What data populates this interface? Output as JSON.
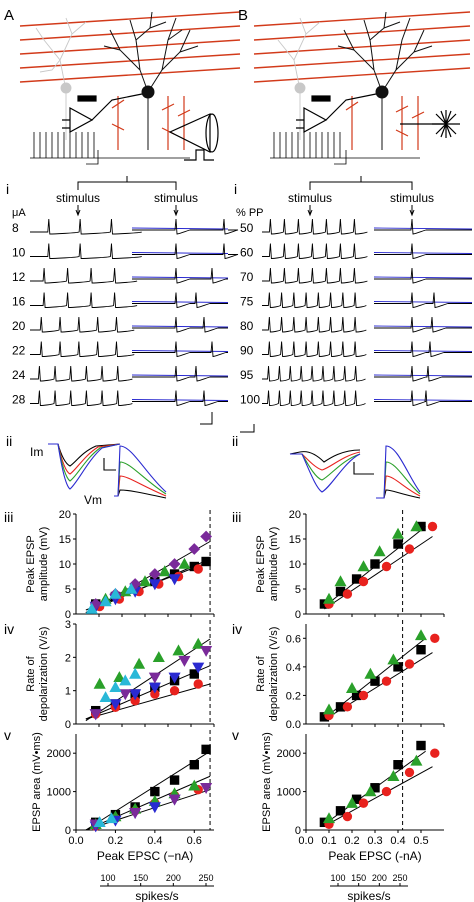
{
  "panels": {
    "A": "A",
    "B": "B",
    "Ai": "i",
    "Bi": "i",
    "Aii": "ii",
    "Bii": "ii",
    "Aiii": "iii",
    "Aiv": "iv",
    "Av": "v",
    "Biii": "iii",
    "Biv": "iv",
    "Bv": "v"
  },
  "traces": {
    "stimulus_label": "stimulus",
    "left_unit": "μA",
    "left_levels": [
      "8",
      "10",
      "12",
      "16",
      "20",
      "22",
      "24",
      "28"
    ],
    "right_unit": "% PP",
    "right_levels": [
      "50",
      "60",
      "70",
      "75",
      "80",
      "90",
      "95",
      "100"
    ],
    "Im": "Im",
    "Vm": "Vm"
  },
  "colors": {
    "dendrite_red": "#d23a1a",
    "neuron_black": "#111111",
    "black": "#000000",
    "red": "#e8221e",
    "green": "#2aa02a",
    "blue": "#2a2ad0",
    "purple": "#7a2a9a",
    "cyan": "#29b8d8"
  },
  "chart_data": [
    {
      "type": "scatter",
      "panel": "Aiii",
      "ylabel": "Peak EPSP amplitude (mV)",
      "xlim": [
        0,
        0.7
      ],
      "ylim": [
        0,
        20
      ],
      "yticks": [
        "0",
        "5",
        "10",
        "15",
        "20"
      ],
      "show_xticks": false,
      "vline": 0.68,
      "series": [
        {
          "marker": "square",
          "color": "black",
          "x": [
            0.1,
            0.2,
            0.3,
            0.4,
            0.5,
            0.6,
            0.66
          ],
          "y": [
            2,
            3.5,
            5,
            6.5,
            8,
            9.5,
            10.5
          ]
        },
        {
          "marker": "circle",
          "color": "red",
          "x": [
            0.12,
            0.22,
            0.32,
            0.42,
            0.52,
            0.62
          ],
          "y": [
            1.5,
            3,
            4.5,
            6,
            7.5,
            9
          ]
        },
        {
          "marker": "triangle",
          "color": "green",
          "x": [
            0.15,
            0.25,
            0.35,
            0.45,
            0.55
          ],
          "y": [
            3,
            4.5,
            6.5,
            8.5,
            10
          ]
        },
        {
          "marker": "tri-down",
          "color": "blue",
          "x": [
            0.1,
            0.2,
            0.3,
            0.4,
            0.5
          ],
          "y": [
            1.5,
            3,
            4.5,
            6,
            7
          ]
        },
        {
          "marker": "diamond",
          "color": "purple",
          "x": [
            0.1,
            0.2,
            0.3,
            0.4,
            0.5,
            0.6,
            0.66
          ],
          "y": [
            2,
            4,
            6,
            8,
            10,
            13,
            15.5
          ]
        },
        {
          "marker": "triangle",
          "color": "cyan",
          "x": [
            0.08,
            0.15,
            0.2,
            0.28
          ],
          "y": [
            1,
            2.5,
            4,
            5
          ]
        }
      ],
      "fits": [
        {
          "x": [
            0.05,
            0.68
          ],
          "y": [
            0.3,
            11
          ]
        },
        {
          "x": [
            0.05,
            0.68
          ],
          "y": [
            0.8,
            10.5
          ]
        },
        {
          "x": [
            0.05,
            0.68
          ],
          "y": [
            0.2,
            14.5
          ]
        }
      ]
    },
    {
      "type": "scatter",
      "panel": "Aiv",
      "ylabel": "Rate of depolarization (V/s)",
      "xlim": [
        0,
        0.7
      ],
      "ylim": [
        0,
        3
      ],
      "yticks": [
        "0",
        "1",
        "2",
        "3"
      ],
      "show_xticks": false,
      "vline": 0.68,
      "series": [
        {
          "marker": "square",
          "color": "black",
          "x": [
            0.1,
            0.2,
            0.3,
            0.4,
            0.5,
            0.6
          ],
          "y": [
            0.4,
            0.6,
            0.9,
            1.1,
            1.3,
            1.5
          ]
        },
        {
          "marker": "circle",
          "color": "red",
          "x": [
            0.1,
            0.2,
            0.3,
            0.4,
            0.5,
            0.62
          ],
          "y": [
            0.3,
            0.5,
            0.7,
            0.9,
            1.0,
            1.2
          ]
        },
        {
          "marker": "triangle",
          "color": "green",
          "x": [
            0.12,
            0.22,
            0.32,
            0.42,
            0.52,
            0.62
          ],
          "y": [
            1.2,
            1.4,
            1.8,
            2.0,
            2.2,
            2.4
          ]
        },
        {
          "marker": "tri-down",
          "color": "blue",
          "x": [
            0.1,
            0.2,
            0.3,
            0.4,
            0.5,
            0.62
          ],
          "y": [
            0.3,
            0.6,
            0.9,
            1.1,
            1.4,
            1.7
          ]
        },
        {
          "marker": "tri-down",
          "color": "purple",
          "x": [
            0.1,
            0.25,
            0.4,
            0.55,
            0.66
          ],
          "y": [
            0.3,
            0.9,
            1.4,
            1.9,
            2.2
          ]
        },
        {
          "marker": "triangle",
          "color": "cyan",
          "x": [
            0.15,
            0.2,
            0.25,
            0.3
          ],
          "y": [
            0.8,
            1.1,
            1.3,
            1.5
          ]
        }
      ],
      "fits": [
        {
          "x": [
            0.05,
            0.68
          ],
          "y": [
            0.1,
            2.55
          ]
        },
        {
          "x": [
            0.05,
            0.68
          ],
          "y": [
            0.15,
            1.75
          ]
        },
        {
          "x": [
            0.05,
            0.68
          ],
          "y": [
            0.15,
            1.2
          ]
        }
      ]
    },
    {
      "type": "scatter",
      "panel": "Av",
      "ylabel": "EPSP area (mV•ms)",
      "xlabel": "Peak EPSC (−nA)",
      "xlim": [
        0,
        0.7
      ],
      "ylim": [
        0,
        2500
      ],
      "yticks": [
        "0",
        "1000",
        "2000"
      ],
      "ytick_values": [
        0,
        1000,
        2000
      ],
      "xticks": [
        "0.0",
        "0.2",
        "0.4",
        "0.6"
      ],
      "xtick_values": [
        0,
        0.2,
        0.4,
        0.6
      ],
      "vline": 0.68,
      "series": [
        {
          "marker": "square",
          "color": "black",
          "x": [
            0.1,
            0.2,
            0.3,
            0.4,
            0.5,
            0.6,
            0.66
          ],
          "y": [
            200,
            400,
            600,
            1000,
            1300,
            1700,
            2100
          ]
        },
        {
          "marker": "circle",
          "color": "red",
          "x": [
            0.1,
            0.2,
            0.3,
            0.4,
            0.5,
            0.62
          ],
          "y": [
            100,
            300,
            500,
            700,
            900,
            1050
          ]
        },
        {
          "marker": "triangle",
          "color": "green",
          "x": [
            0.1,
            0.2,
            0.3,
            0.4,
            0.5,
            0.6
          ],
          "y": [
            150,
            350,
            550,
            750,
            950,
            1150
          ]
        },
        {
          "marker": "tri-down",
          "color": "blue",
          "x": [
            0.1,
            0.2,
            0.3,
            0.4,
            0.5
          ],
          "y": [
            100,
            250,
            450,
            600,
            800
          ]
        },
        {
          "marker": "tri-down",
          "color": "purple",
          "x": [
            0.1,
            0.3,
            0.5,
            0.66
          ],
          "y": [
            150,
            450,
            800,
            1100
          ]
        },
        {
          "marker": "triangle",
          "color": "cyan",
          "x": [
            0.12,
            0.18
          ],
          "y": [
            200,
            300
          ]
        }
      ],
      "fits": [
        {
          "x": [
            0.05,
            0.68
          ],
          "y": [
            0,
            2050
          ]
        },
        {
          "x": [
            0.05,
            0.68
          ],
          "y": [
            0,
            1400
          ]
        },
        {
          "x": [
            0.05,
            0.68
          ],
          "y": [
            0,
            1050
          ]
        }
      ]
    },
    {
      "type": "scatter",
      "panel": "Biii",
      "ylabel": "Peak EPSP amplitude (mV)",
      "xlim": [
        0,
        0.6
      ],
      "ylim": [
        0,
        20
      ],
      "yticks": [
        "0",
        "5",
        "10",
        "15",
        "20"
      ],
      "show_xticks": false,
      "vline": 0.42,
      "series": [
        {
          "marker": "square",
          "color": "black",
          "x": [
            0.08,
            0.15,
            0.22,
            0.3,
            0.4,
            0.5
          ],
          "y": [
            2,
            4.5,
            7,
            10,
            14,
            17.5
          ]
        },
        {
          "marker": "circle",
          "color": "red",
          "x": [
            0.1,
            0.18,
            0.25,
            0.35,
            0.45,
            0.55
          ],
          "y": [
            2,
            4,
            6.5,
            9.5,
            13,
            17.5
          ]
        },
        {
          "marker": "triangle",
          "color": "green",
          "x": [
            0.1,
            0.15,
            0.25,
            0.32,
            0.4,
            0.48
          ],
          "y": [
            3,
            6.5,
            9.5,
            12.5,
            16,
            17.5
          ]
        }
      ],
      "fits": [
        {
          "x": [
            0.08,
            0.52
          ],
          "y": [
            1.5,
            17.5
          ]
        },
        {
          "x": [
            0.08,
            0.55
          ],
          "y": [
            1.0,
            15.5
          ]
        }
      ]
    },
    {
      "type": "scatter",
      "panel": "Biv",
      "ylabel": "Rate of depolarization (V/s)",
      "xlim": [
        0,
        0.6
      ],
      "ylim": [
        0,
        0.7
      ],
      "yticks": [
        "0.0",
        "0.2",
        "0.4",
        "0.6"
      ],
      "ytick_values": [
        0,
        0.2,
        0.4,
        0.6
      ],
      "show_xticks": false,
      "vline": 0.42,
      "series": [
        {
          "marker": "square",
          "color": "black",
          "x": [
            0.08,
            0.15,
            0.22,
            0.3,
            0.4,
            0.5
          ],
          "y": [
            0.05,
            0.12,
            0.2,
            0.3,
            0.4,
            0.52
          ]
        },
        {
          "marker": "circle",
          "color": "red",
          "x": [
            0.1,
            0.18,
            0.25,
            0.35,
            0.45,
            0.56
          ],
          "y": [
            0.06,
            0.12,
            0.2,
            0.3,
            0.42,
            0.6
          ]
        },
        {
          "marker": "triangle",
          "color": "green",
          "x": [
            0.1,
            0.2,
            0.28,
            0.38,
            0.5
          ],
          "y": [
            0.1,
            0.25,
            0.35,
            0.45,
            0.62
          ]
        }
      ],
      "fits": [
        {
          "x": [
            0.08,
            0.52
          ],
          "y": [
            0.04,
            0.6
          ]
        },
        {
          "x": [
            0.08,
            0.55
          ],
          "y": [
            0.03,
            0.5
          ]
        }
      ]
    },
    {
      "type": "scatter",
      "panel": "Bv",
      "ylabel": "EPSP area (mV•ms)",
      "xlabel": "Peak EPSC (-nA)",
      "xlim": [
        0,
        0.6
      ],
      "ylim": [
        0,
        2500
      ],
      "yticks": [
        "0",
        "1000",
        "2000"
      ],
      "ytick_values": [
        0,
        1000,
        2000
      ],
      "xticks": [
        "0.0",
        "0.1",
        "0.2",
        "0.3",
        "0.4",
        "0.5"
      ],
      "xtick_values": [
        0,
        0.1,
        0.2,
        0.3,
        0.4,
        0.5
      ],
      "vline": 0.42,
      "series": [
        {
          "marker": "square",
          "color": "black",
          "x": [
            0.08,
            0.15,
            0.22,
            0.3,
            0.4,
            0.5
          ],
          "y": [
            200,
            500,
            800,
            1100,
            1700,
            2200
          ]
        },
        {
          "marker": "circle",
          "color": "red",
          "x": [
            0.1,
            0.18,
            0.25,
            0.35,
            0.45,
            0.56
          ],
          "y": [
            150,
            350,
            700,
            1000,
            1500,
            2000
          ]
        },
        {
          "marker": "triangle",
          "color": "green",
          "x": [
            0.1,
            0.2,
            0.28,
            0.38,
            0.48
          ],
          "y": [
            300,
            700,
            1000,
            1400,
            1800
          ]
        }
      ],
      "fits": [
        {
          "x": [
            0.08,
            0.52
          ],
          "y": [
            150,
            2050
          ]
        },
        {
          "x": [
            0.08,
            0.55
          ],
          "y": [
            100,
            1650
          ]
        }
      ]
    }
  ],
  "rate_axes": {
    "ticks": [
      "100",
      "150",
      "200",
      "250"
    ],
    "label": "spikes/s"
  }
}
